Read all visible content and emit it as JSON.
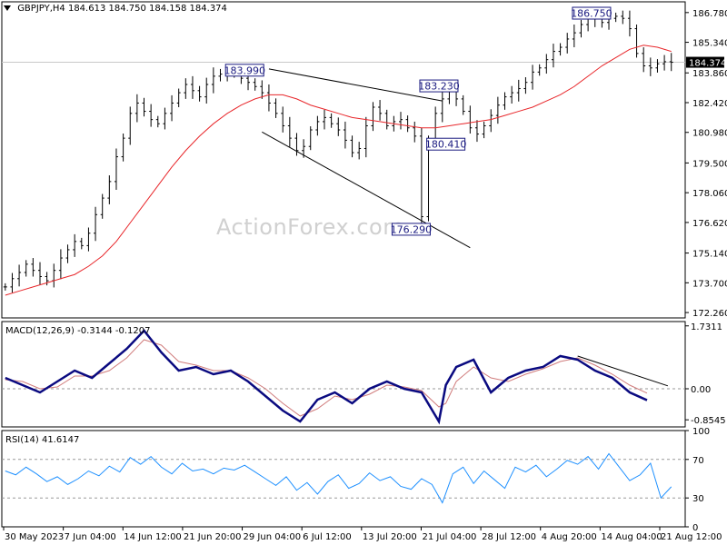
{
  "header": {
    "symbol": "GBPJPY,H4",
    "ohlc": "184.613 184.750 184.158 184.374"
  },
  "watermark": "ActionForex.com",
  "colors": {
    "candles": "#000000",
    "ema": "#e8262a",
    "macd": "#0a0a80",
    "macd_signal": "#d07c7c",
    "rsi": "#1e90ff",
    "trendline": "#000000",
    "level_line": "#c8c8c8",
    "price_marker_bg": "#000000",
    "annotation_border": "#1a1a80"
  },
  "chart_data": [
    {
      "type": "line",
      "panel": "price",
      "series": [
        {
          "name": "",
          "style": "ohlc-bars",
          "x": [
            1,
            3,
            5,
            7,
            9,
            11,
            13,
            15,
            17,
            19,
            21,
            23,
            25,
            27,
            29,
            31,
            33,
            35,
            37,
            39,
            41,
            43,
            45,
            47,
            49,
            51,
            53,
            55,
            57,
            59,
            61,
            63,
            65,
            67,
            69,
            71,
            73,
            75,
            77,
            79,
            81,
            83,
            85,
            87,
            89,
            91,
            93,
            95,
            97,
            99,
            101,
            103,
            105,
            107,
            109,
            111,
            113,
            115,
            117,
            119,
            121,
            123,
            125,
            127,
            129,
            131,
            133,
            135,
            137,
            139,
            141,
            143,
            145,
            147,
            149,
            151,
            153,
            155,
            157,
            159,
            161,
            163,
            165,
            167,
            169,
            171,
            173,
            175,
            177,
            179,
            181,
            183,
            185,
            187,
            189,
            191,
            193
          ],
          "values": [
            173.5,
            173.9,
            174.2,
            174.6,
            174.3,
            174.0,
            173.8,
            174.3,
            174.9,
            175.3,
            175.7,
            175.5,
            176.1,
            177.0,
            177.8,
            178.6,
            179.8,
            180.7,
            181.9,
            182.4,
            182.0,
            181.6,
            181.4,
            181.9,
            182.4,
            182.9,
            183.3,
            183.0,
            182.7,
            183.3,
            183.7,
            183.8,
            183.9,
            183.8,
            183.6,
            183.4,
            183.2,
            182.9,
            182.4,
            181.9,
            181.3,
            180.7,
            180.1,
            180.3,
            181.1,
            181.5,
            181.7,
            181.4,
            181.1,
            180.6,
            180.0,
            180.2,
            181.3,
            182.2,
            181.9,
            181.3,
            181.5,
            181.6,
            181.2,
            180.8,
            176.9,
            180.6,
            181.9,
            182.6,
            183.0,
            182.6,
            182.0,
            181.2,
            180.9,
            181.3,
            181.8,
            182.3,
            182.7,
            182.9,
            183.1,
            183.4,
            183.9,
            184.1,
            184.5,
            184.9,
            185.1,
            185.5,
            185.8,
            186.2,
            186.5,
            186.6,
            186.3,
            186.5,
            186.6,
            186.5,
            186.0,
            184.8,
            184.2,
            184.1,
            184.3,
            184.4,
            184.374
          ]
        },
        {
          "name": "",
          "style": "moving-average",
          "x": [
            1,
            5,
            9,
            13,
            17,
            21,
            25,
            29,
            33,
            37,
            41,
            45,
            49,
            53,
            57,
            61,
            65,
            69,
            73,
            77,
            81,
            85,
            89,
            93,
            97,
            101,
            105,
            109,
            113,
            117,
            121,
            125,
            129,
            133,
            137,
            141,
            145,
            149,
            153,
            157,
            161,
            165,
            169,
            173,
            177,
            181,
            185,
            189,
            193
          ],
          "values": [
            173.1,
            173.3,
            173.5,
            173.7,
            173.9,
            174.1,
            174.5,
            175.0,
            175.7,
            176.6,
            177.5,
            178.4,
            179.3,
            180.1,
            180.8,
            181.4,
            181.9,
            182.3,
            182.6,
            182.8,
            182.8,
            182.6,
            182.3,
            182.1,
            181.9,
            181.7,
            181.6,
            181.5,
            181.4,
            181.3,
            181.2,
            181.2,
            181.3,
            181.4,
            181.5,
            181.6,
            181.8,
            182.0,
            182.2,
            182.5,
            182.8,
            183.2,
            183.7,
            184.2,
            184.6,
            185.0,
            185.2,
            185.1,
            184.9
          ]
        }
      ],
      "yticks": [
        172.26,
        173.7,
        175.14,
        176.62,
        178.06,
        179.5,
        180.98,
        182.42,
        183.86,
        185.34,
        186.78
      ],
      "ylim": [
        172.0,
        187.3
      ],
      "xlim": [
        0,
        197
      ],
      "current_price_label": "184.374",
      "level_line_value": 184.374,
      "annotations": [
        {
          "label": "183.990",
          "x": 70,
          "y": 183.99
        },
        {
          "label": "183.230",
          "x": 126,
          "y": 183.23
        },
        {
          "label": "180.410",
          "x": 128,
          "y": 180.41
        },
        {
          "label": "176.290",
          "x": 118,
          "y": 176.29
        },
        {
          "label": "186.750",
          "x": 170,
          "y": 186.75
        }
      ],
      "trendlines": [
        {
          "x1": 77,
          "y1": 184.05,
          "x2": 127,
          "y2": 182.5
        },
        {
          "x1": 75,
          "y1": 181.0,
          "x2": 135,
          "y2": 175.4
        }
      ]
    },
    {
      "type": "line",
      "panel": "macd",
      "title": "MACD(12,26,9) -0.3144 -0.1207",
      "series": [
        {
          "name": "",
          "style": "macd",
          "x": [
            1,
            6,
            11,
            16,
            21,
            26,
            31,
            36,
            41,
            46,
            51,
            56,
            61,
            66,
            71,
            76,
            81,
            86,
            91,
            96,
            101,
            106,
            111,
            116,
            121,
            126,
            128,
            131,
            136,
            141,
            146,
            151,
            156,
            161,
            166,
            171,
            176,
            181,
            186
          ],
          "values": [
            0.3,
            0.1,
            -0.1,
            0.2,
            0.5,
            0.3,
            0.7,
            1.1,
            1.6,
            1.0,
            0.5,
            0.6,
            0.4,
            0.5,
            0.2,
            -0.2,
            -0.6,
            -0.9,
            -0.3,
            -0.1,
            -0.4,
            0.0,
            0.2,
            0.0,
            -0.1,
            -0.9,
            0.1,
            0.6,
            0.8,
            -0.1,
            0.3,
            0.5,
            0.6,
            0.9,
            0.8,
            0.5,
            0.3,
            -0.1,
            -0.3144
          ]
        },
        {
          "name": "",
          "style": "signal",
          "x": [
            1,
            6,
            11,
            16,
            21,
            26,
            31,
            36,
            41,
            46,
            51,
            56,
            61,
            66,
            71,
            76,
            81,
            86,
            91,
            96,
            101,
            106,
            111,
            116,
            121,
            126,
            128,
            131,
            136,
            141,
            146,
            151,
            156,
            161,
            166,
            171,
            176,
            181,
            186
          ],
          "values": [
            0.25,
            0.2,
            0.0,
            0.05,
            0.35,
            0.35,
            0.5,
            0.85,
            1.35,
            1.2,
            0.75,
            0.65,
            0.5,
            0.5,
            0.3,
            0.0,
            -0.4,
            -0.75,
            -0.55,
            -0.2,
            -0.3,
            -0.15,
            0.1,
            0.05,
            -0.05,
            -0.5,
            -0.4,
            0.2,
            0.6,
            0.3,
            0.2,
            0.4,
            0.55,
            0.75,
            0.85,
            0.65,
            0.4,
            0.1,
            -0.1207
          ]
        }
      ],
      "yticks": [
        -0.8545,
        0.0,
        1.7311
      ],
      "ylim": [
        -1.05,
        1.85
      ],
      "trendline": {
        "x1": 166,
        "y1": 0.9,
        "x2": 192,
        "y2": 0.08
      }
    },
    {
      "type": "line",
      "panel": "rsi",
      "title": "RSI(14) 41.6147",
      "series": [
        {
          "name": "",
          "style": "rsi",
          "x": [
            1,
            4,
            7,
            10,
            13,
            16,
            19,
            22,
            25,
            28,
            31,
            34,
            37,
            40,
            43,
            46,
            49,
            52,
            55,
            58,
            61,
            64,
            67,
            70,
            73,
            76,
            79,
            82,
            85,
            88,
            91,
            94,
            97,
            100,
            103,
            106,
            109,
            112,
            115,
            118,
            121,
            124,
            127,
            130,
            133,
            136,
            139,
            142,
            145,
            148,
            151,
            154,
            157,
            160,
            163,
            166,
            169,
            172,
            175,
            178,
            181,
            184,
            187,
            190,
            193
          ],
          "values": [
            58,
            54,
            62,
            55,
            47,
            52,
            44,
            50,
            58,
            53,
            63,
            57,
            72,
            65,
            73,
            62,
            55,
            66,
            58,
            60,
            55,
            61,
            59,
            64,
            57,
            50,
            43,
            52,
            38,
            46,
            34,
            47,
            54,
            40,
            45,
            56,
            48,
            52,
            42,
            39,
            50,
            44,
            25,
            55,
            62,
            45,
            58,
            49,
            40,
            62,
            57,
            64,
            52,
            60,
            69,
            65,
            73,
            60,
            76,
            62,
            48,
            54,
            66,
            30,
            41.6147
          ]
        }
      ],
      "yticks": [
        0,
        30,
        70,
        100
      ],
      "ylim": [
        0,
        100
      ]
    }
  ],
  "x_axis_labels": [
    "30 May 2023",
    "7 Jun 04:00",
    "14 Jun 12:00",
    "21 Jun 20:00",
    "29 Jun 04:00",
    "6 Jul 12:00",
    "13 Jul 20:00",
    "21 Jul 04:00",
    "28 Jul 12:00",
    "4 Aug 20:00",
    "14 Aug 04:00",
    "21 Aug 12:00"
  ],
  "panels": {
    "macd_title": "MACD(12,26,9) -0.3144 -0.1207",
    "rsi_title": "RSI(14) 41.6147"
  }
}
